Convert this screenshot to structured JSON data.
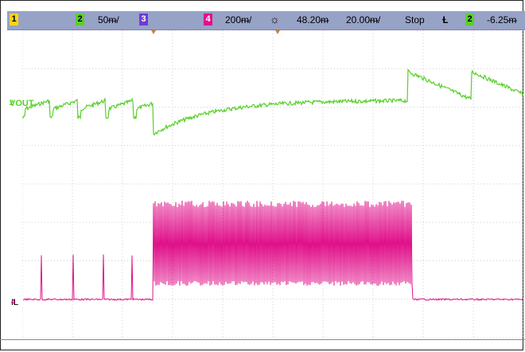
{
  "status_bar": {
    "ch1": {
      "num": "1",
      "color": "#ffd21a"
    },
    "ch2": {
      "num": "2",
      "scale": "50ᵯ/",
      "color": "#58d02a"
    },
    "ch3": {
      "num": "3",
      "color": "#6e3bd6"
    },
    "ch4": {
      "num": "4",
      "scale": "200ᵯ/",
      "color": "#e0108a"
    },
    "trigger_icon": "sun-icon",
    "time_offset": "48.20ᵯ",
    "timebase": "20.00ᵯ/",
    "run_state": "Stop",
    "trigger_slope_icon": "falling-edge-icon",
    "trigger_source": "2",
    "trigger_level": "-6.25ᵯ"
  },
  "channels": {
    "vout": {
      "label": "VOUT",
      "marker": "2",
      "color": "#58d02a"
    },
    "il": {
      "label": "IL",
      "marker": "4",
      "color": "#e0108a"
    }
  },
  "colors": {
    "grid": "#cfcfcf",
    "trigger_marker": "#d8802a"
  }
}
